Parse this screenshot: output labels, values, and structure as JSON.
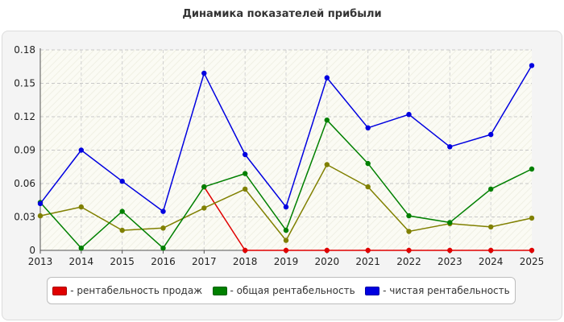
{
  "chart_data": {
    "type": "line",
    "title": "Динамика показателей прибыли",
    "x": [
      "2013",
      "2014",
      "2015",
      "2016",
      "2017",
      "2018",
      "2019",
      "2020",
      "2021",
      "2022",
      "2023",
      "2024",
      "2025"
    ],
    "ylim": [
      0,
      0.18
    ],
    "yticks": [
      "0",
      "0.03",
      "0.06",
      "0.09",
      "0.12",
      "0.15",
      "0.18"
    ],
    "grid": true,
    "legend_position": "bottom",
    "series": [
      {
        "name": "рентабельность продаж",
        "color": "#e00000",
        "values": [
          null,
          null,
          null,
          null,
          0.057,
          0,
          0,
          0,
          0,
          0,
          0,
          0,
          0
        ]
      },
      {
        "name": "",
        "color": "#808000",
        "values": [
          0.031,
          0.039,
          0.018,
          0.02,
          0.038,
          0.055,
          0.009,
          0.077,
          0.057,
          0.017,
          0.024,
          0.021,
          0.029
        ]
      },
      {
        "name": "общая рентабельность",
        "color": "#008000",
        "values": [
          0.043,
          0.002,
          0.035,
          0.002,
          0.057,
          0.069,
          0.018,
          0.117,
          0.078,
          0.031,
          0.025,
          0.055,
          0.073
        ]
      },
      {
        "name": "чистая рентабельность",
        "color": "#0000e0",
        "values": [
          0.042,
          0.09,
          0.062,
          0.035,
          0.159,
          0.086,
          0.039,
          0.155,
          0.11,
          0.122,
          0.093,
          0.104,
          0.166
        ]
      }
    ]
  }
}
